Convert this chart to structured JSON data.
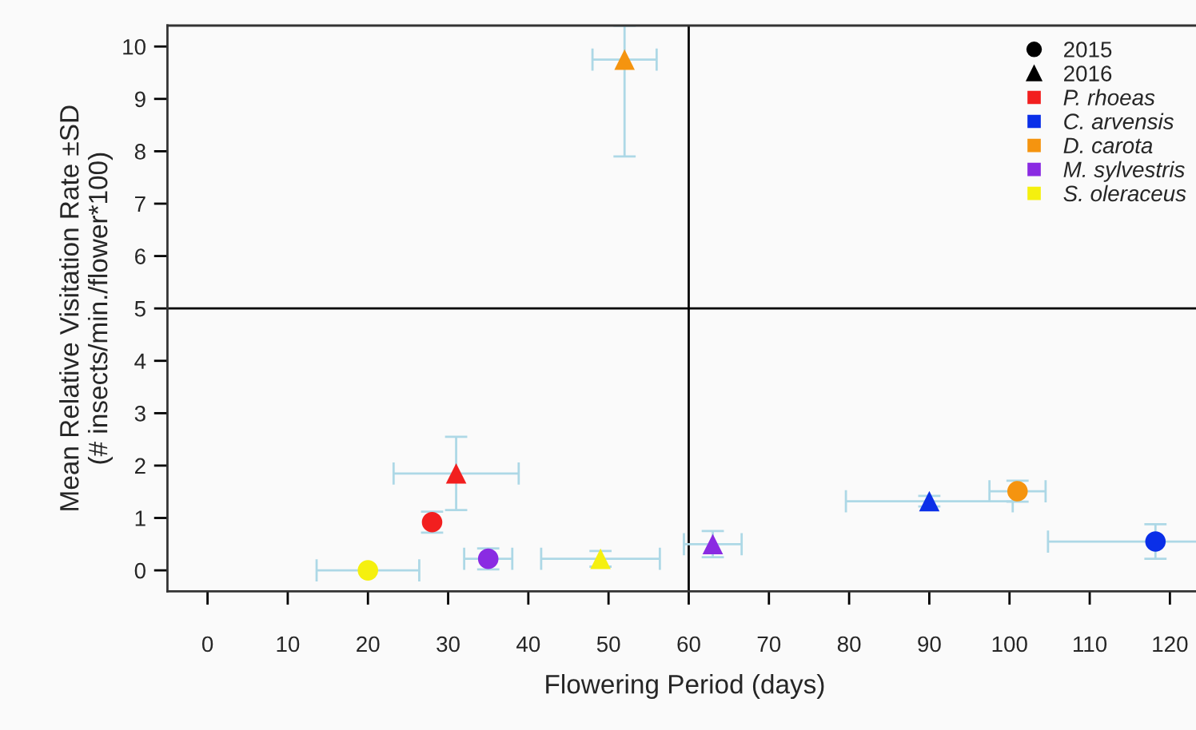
{
  "chart_data": {
    "type": "scatter",
    "xlabel": "Flowering Period (days)",
    "ylabel": "Mean Relative Visitation Rate ±SD\n(# insects/min./flower*100)",
    "xlim": [
      -5,
      124
    ],
    "ylim": [
      -0.4,
      10.4
    ],
    "xticks": [
      0,
      10,
      20,
      30,
      40,
      50,
      60,
      70,
      80,
      90,
      100,
      110,
      120
    ],
    "yticks": [
      0,
      1,
      2,
      3,
      4,
      5,
      6,
      7,
      8,
      9,
      10
    ],
    "grid": false,
    "legend": "top right",
    "ref_lines": [
      {
        "axis": "x",
        "value": 60,
        "color": "#000000"
      },
      {
        "axis": "y",
        "value": 5,
        "color": "#000000"
      }
    ],
    "series": [
      {
        "name": "2015",
        "color": "#000000",
        "marker": "circle"
      },
      {
        "name": "2016",
        "color": "#000000",
        "marker": "triangle"
      },
      {
        "name": "P. rhoeas",
        "color": "#f21f1f",
        "marker": [
          "circle",
          "triangle"
        ],
        "x": [
          28,
          31
        ],
        "values": [
          0.92,
          1.85
        ],
        "errors": [
          0.2,
          0.7
        ],
        "xerrors": [
          null,
          7.8
        ]
      },
      {
        "name": "C. arvensis",
        "color": "#0a2fe8",
        "marker": [
          "triangle",
          "circle"
        ],
        "x": [
          90,
          118.2
        ],
        "values": [
          1.32,
          0.55
        ],
        "errors": [
          0.1,
          0.33
        ],
        "xerrors": [
          10.4,
          [
            104.8,
            124
          ]
        ]
      },
      {
        "name": "D. carota",
        "color": "#f5940f",
        "marker": [
          "circle",
          "triangle"
        ],
        "x": [
          101,
          52
        ],
        "values": [
          1.51,
          9.75
        ],
        "errors": [
          0.2,
          [
            7.9,
            10.4
          ]
        ],
        "xerrors": [
          3.5,
          4
        ]
      },
      {
        "name": "M. sylvestris",
        "color": "#8a2be2",
        "marker": [
          "circle",
          "triangle"
        ],
        "x": [
          35,
          63
        ],
        "values": [
          0.22,
          0.5
        ],
        "errors": [
          0.2,
          0.25
        ],
        "xerrors": [
          3,
          3.6
        ]
      },
      {
        "name": "S. oleraceus",
        "color": "#f5f00f",
        "marker": [
          "circle",
          "triangle"
        ],
        "x": [
          20,
          49
        ],
        "values": [
          0,
          0.22
        ],
        "errors": [
          null,
          0.15
        ],
        "xerrors": [
          6.4,
          7.4
        ]
      }
    ]
  }
}
